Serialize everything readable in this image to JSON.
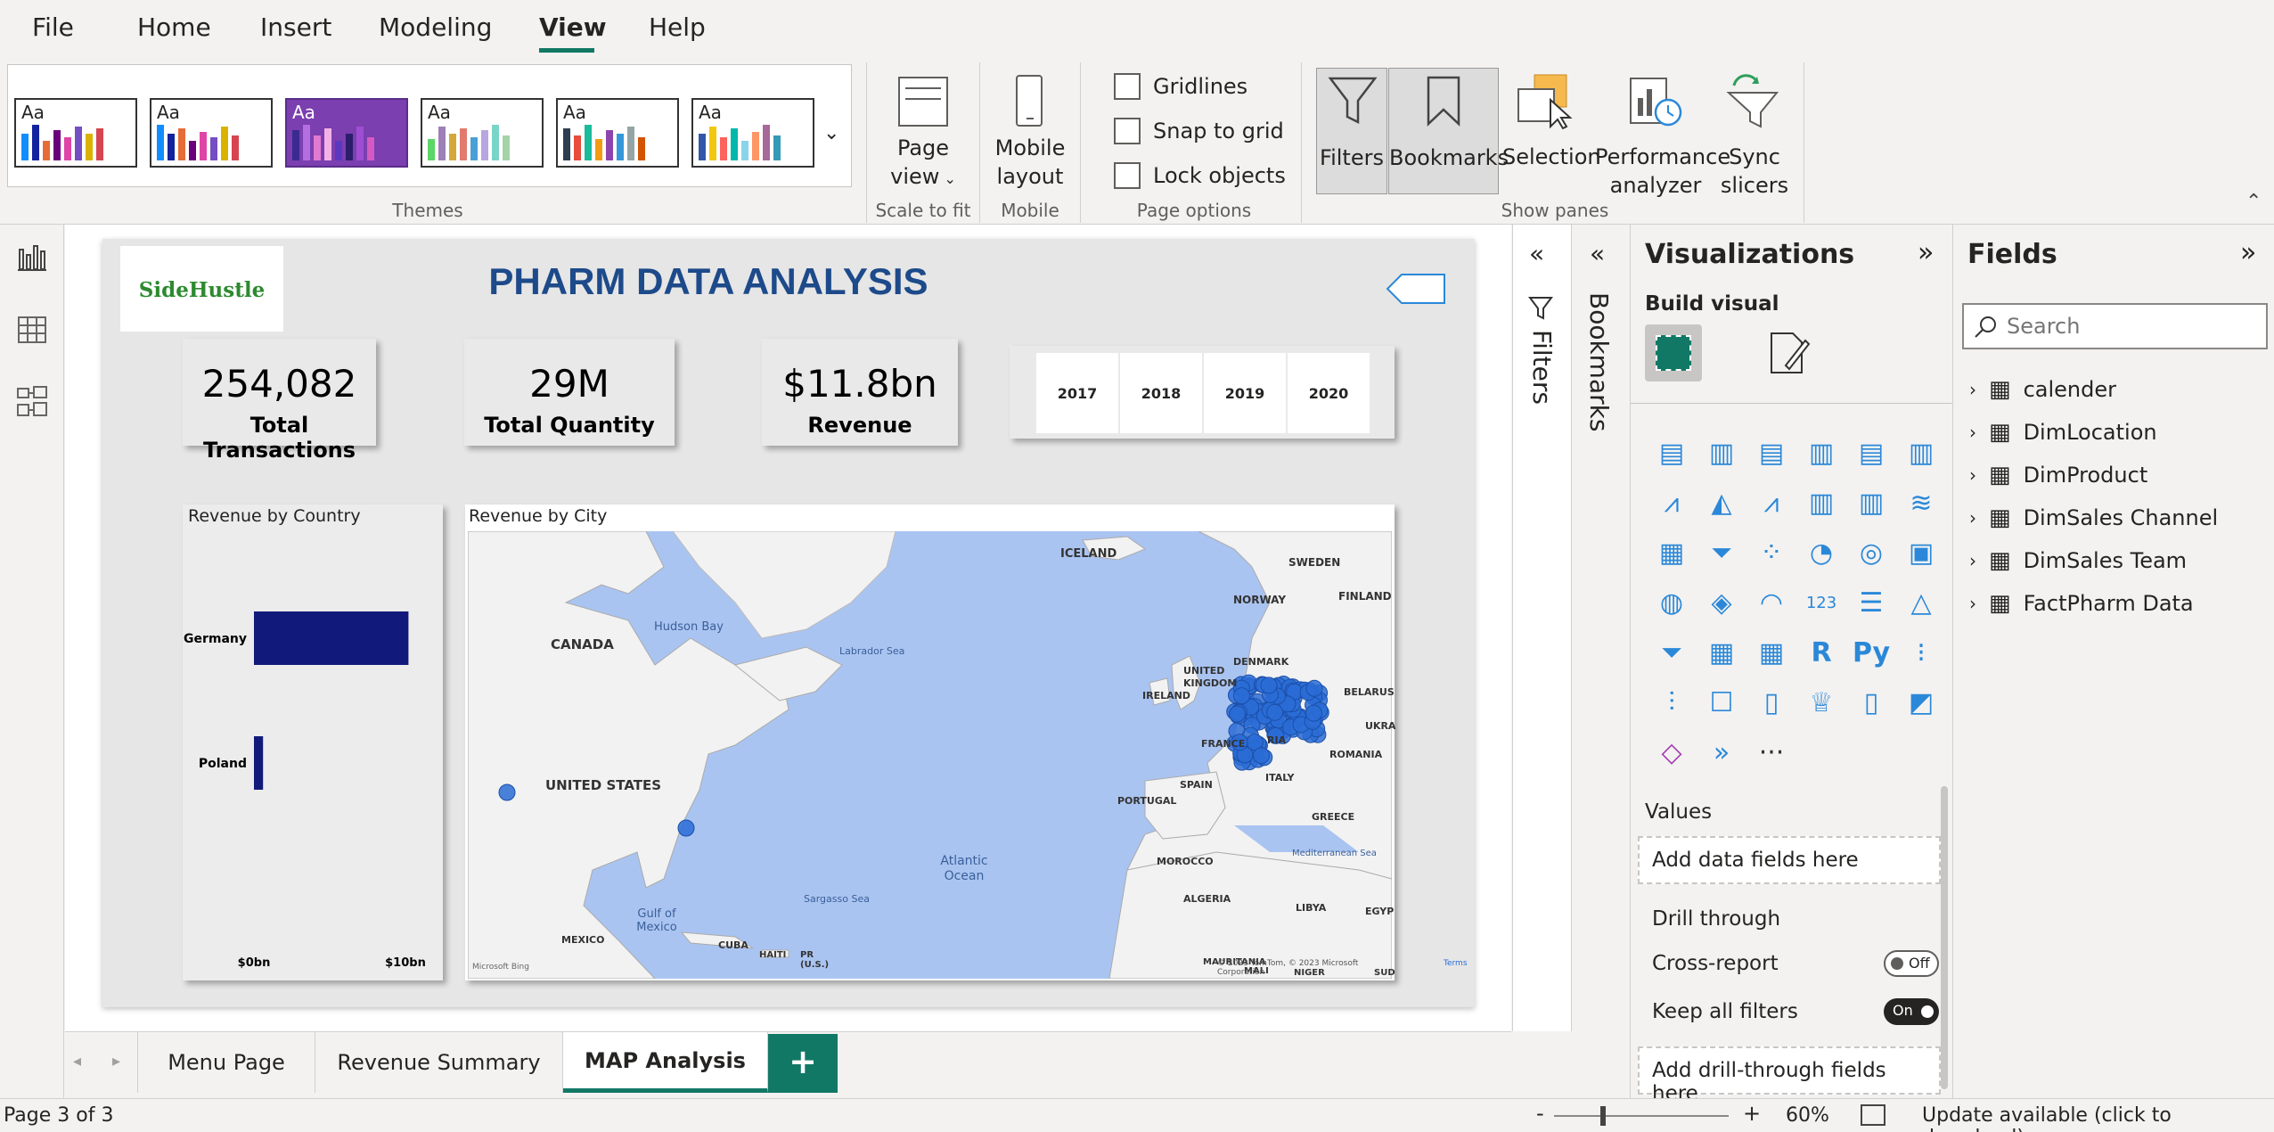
{
  "menu": {
    "tabs": [
      "File",
      "Home",
      "Insert",
      "Modeling",
      "View",
      "Help"
    ],
    "active": "View"
  },
  "ribbon": {
    "themes_label": "Themes",
    "theme_sample": "Aa",
    "page_view": "Page view",
    "scale_to_fit": "Scale to fit",
    "mobile_layout": "Mobile layout",
    "mobile": "Mobile",
    "gridlines": "Gridlines",
    "snap_to_grid": "Snap to grid",
    "lock_objects": "Lock objects",
    "page_options": "Page options",
    "filters": "Filters",
    "bookmarks": "Bookmarks",
    "selection": "Selection",
    "performance_analyzer": "Performance analyzer",
    "sync_slicers": "Sync slicers",
    "show_panes": "Show panes"
  },
  "report": {
    "logo": "SideHustle",
    "title": "PHARM DATA ANALYSIS",
    "cards": [
      {
        "value": "254,082",
        "label": "Total Transactions"
      },
      {
        "value": "29M",
        "label": "Total Quantity"
      },
      {
        "value": "$11.8bn",
        "label": "Revenue"
      }
    ],
    "years": [
      "2017",
      "2018",
      "2019",
      "2020"
    ],
    "country_chart": {
      "title": "Revenue by Country",
      "xticks": [
        "$0bn",
        "$10bn"
      ]
    },
    "map": {
      "title": "Revenue by City",
      "labels": {
        "iceland": "ICELAND",
        "sweden": "SWEDEN",
        "finland": "FINLAND",
        "norway": "NORWAY",
        "canada": "CANADA",
        "hudson": "Hudson Bay",
        "labrador": "Labrador Sea",
        "denmark": "DENMARK",
        "uk": "UNITED KINGDOM",
        "ireland": "IRELAND",
        "belarus": "BELARUS",
        "ukraine": "UKRA",
        "france": "FRANCE",
        "romania": "ROMANIA",
        "usa": "UNITED STATES",
        "spain": "SPAIN",
        "italy": "ITALY",
        "portugal": "PORTUGAL",
        "greece": "GREECE",
        "atlantic": "Atlantic Ocean",
        "morocco": "MOROCCO",
        "med": "Mediterranean Sea",
        "sargasso": "Sargasso Sea",
        "gulf": "Gulf of Mexico",
        "algeria": "ALGERIA",
        "libya": "LIBYA",
        "egypt": "EGYP",
        "mexico": "MEXICO",
        "cuba": "CUBA",
        "haiti": "HAITI",
        "pr": "PR (U.S.)",
        "mauritania": "MAURITANIA",
        "mali": "MALI",
        "niger": "NIGER",
        "sudan": "SUD",
        "ria": "RIA"
      },
      "attribution": "© 2023 TomTom, © 2023 Microsoft Corporation",
      "terms": "Terms",
      "bing": "Microsoft Bing"
    }
  },
  "chart_data": {
    "type": "bar",
    "title": "Revenue by Country",
    "categories": [
      "Germany",
      "Poland"
    ],
    "values": [
      10.2,
      0.6
    ],
    "xlim": [
      0,
      14
    ],
    "xticks": [
      "$0bn",
      "$10bn"
    ],
    "orientation": "horizontal",
    "color": "#111a7a"
  },
  "filters_pane": {
    "label": "Filters"
  },
  "bookmarks_pane": {
    "label": "Bookmarks"
  },
  "viz_pane": {
    "title": "Visualizations",
    "build_visual": "Build visual",
    "values": "Values",
    "add_data": "Add data fields here",
    "drill_through": "Drill through",
    "cross_report": "Cross-report",
    "cross_report_state": "Off",
    "keep_filters": "Keep all filters",
    "keep_filters_state": "On",
    "add_drill": "Add drill-through fields here",
    "more": "···"
  },
  "fields_pane": {
    "title": "Fields",
    "search_placeholder": "Search",
    "tables": [
      "calender",
      "DimLocation",
      "DimProduct",
      "DimSales Channel",
      "DimSales Team",
      "FactPharm Data"
    ]
  },
  "page_tabs": [
    "Menu Page",
    "Revenue Summary",
    "MAP Analysis"
  ],
  "active_page": "MAP Analysis",
  "add_page": "+",
  "status": {
    "page": "Page 3 of 3",
    "zoom": "60%",
    "update": "Update available (click to download)",
    "minus": "-",
    "plus": "+"
  },
  "colors": {
    "accent": "#117865",
    "map_water": "#aac4f1",
    "map_dots": "#2a6cd6",
    "title_blue": "#1d4a8a"
  }
}
